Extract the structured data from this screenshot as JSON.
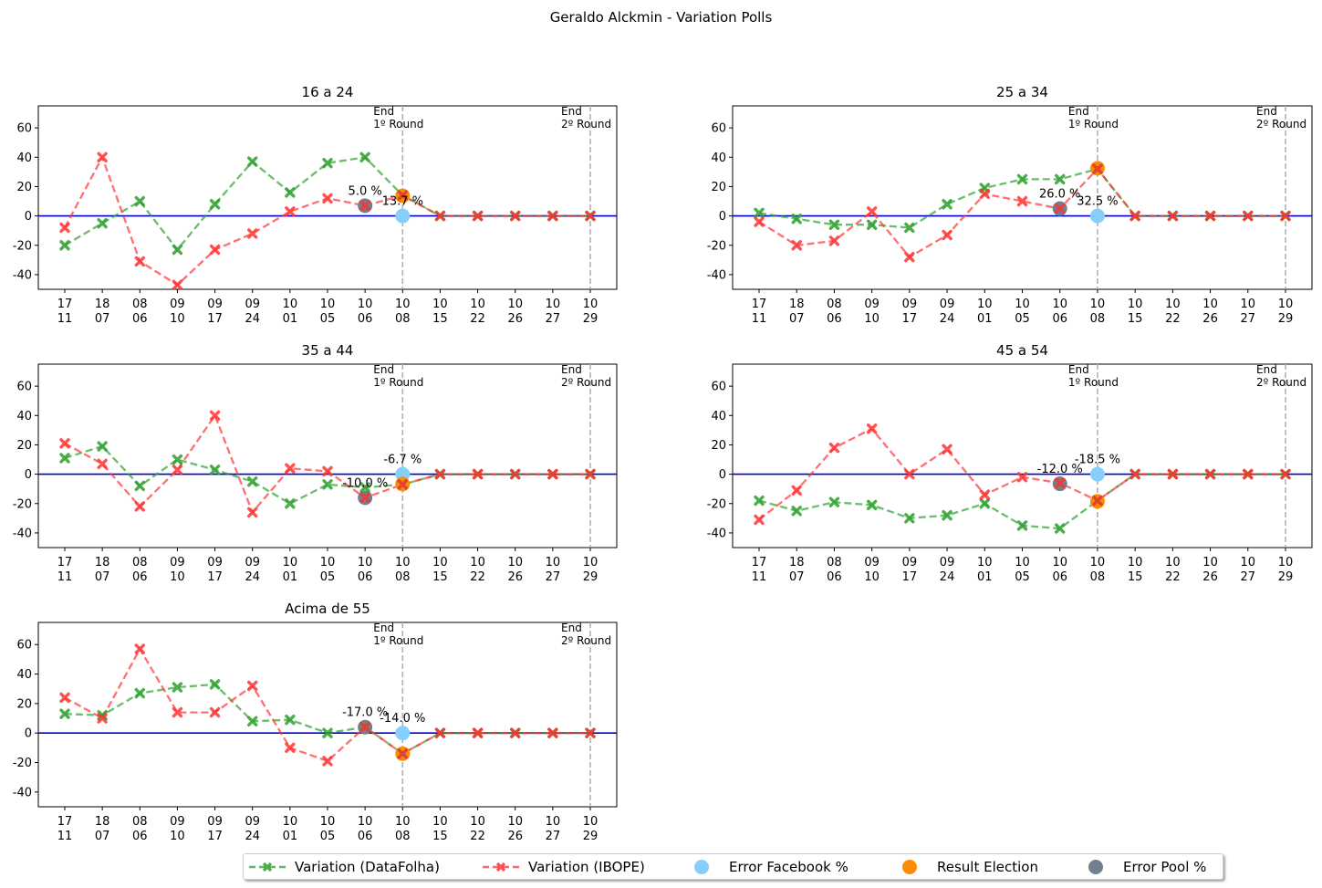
{
  "suptitle": "Geraldo Alckmin - Variation Polls",
  "dates": [
    [
      "17",
      "11"
    ],
    [
      "18",
      "07"
    ],
    [
      "08",
      "06"
    ],
    [
      "09",
      "10"
    ],
    [
      "09",
      "17"
    ],
    [
      "09",
      "24"
    ],
    [
      "10",
      "01"
    ],
    [
      "10",
      "05"
    ],
    [
      "10",
      "06"
    ],
    [
      "10",
      "08"
    ],
    [
      "10",
      "15"
    ],
    [
      "10",
      "22"
    ],
    [
      "10",
      "26"
    ],
    [
      "10",
      "27"
    ],
    [
      "10",
      "29"
    ]
  ],
  "markers": {
    "round1_index": 9,
    "round2_index": 14,
    "round1_label": [
      "End",
      "1º Round"
    ],
    "round2_label": [
      "End",
      "2º Round"
    ]
  },
  "colors": {
    "datafolha": "#2ca02c",
    "ibope": "#ff3333",
    "facebook": "#87cefa",
    "election": "#ff8c00",
    "pool": "#708090",
    "zero_line": "#0000cc",
    "round_line": "#b0b0b0"
  },
  "legend": [
    {
      "key": "datafolha",
      "label": "Variation (DataFolha)"
    },
    {
      "key": "ibope",
      "label": "Variation (IBOPE)"
    },
    {
      "key": "facebook",
      "label": "Error Facebook %"
    },
    {
      "key": "election",
      "label": "Result Election"
    },
    {
      "key": "pool",
      "label": "Error Pool %"
    }
  ],
  "chart_data": [
    {
      "type": "line",
      "title": "16 a 24",
      "ylim": [
        -50,
        75
      ],
      "yticks": [
        -40,
        -20,
        0,
        20,
        40,
        60
      ],
      "series": [
        {
          "name": "Variation (DataFolha)",
          "values": [
            -20,
            -5,
            10,
            -23,
            8,
            37,
            16,
            36,
            40,
            14,
            0,
            0,
            0,
            0,
            0
          ]
        },
        {
          "name": "Variation (IBOPE)",
          "values": [
            -8,
            40,
            -31,
            -47,
            -23,
            -12,
            3,
            12,
            7,
            14,
            0,
            0,
            0,
            0,
            0
          ]
        }
      ],
      "points": {
        "facebook": {
          "x": 9,
          "y": 0
        },
        "election": {
          "x": 9,
          "y": 13.7
        },
        "pool": {
          "x": 8,
          "y": 7
        }
      },
      "annotations": [
        {
          "text": "5.0 %",
          "x": 8,
          "y": 7
        },
        {
          "text": "13.7 %",
          "x": 9,
          "y": 0
        }
      ]
    },
    {
      "type": "line",
      "title": "25 a 34",
      "ylim": [
        -50,
        75
      ],
      "yticks": [
        -40,
        -20,
        0,
        20,
        40,
        60
      ],
      "series": [
        {
          "name": "Variation (DataFolha)",
          "values": [
            2,
            -2,
            -6,
            -6,
            -8,
            8,
            19,
            25,
            25,
            32,
            0,
            0,
            0,
            0,
            0
          ]
        },
        {
          "name": "Variation (IBOPE)",
          "values": [
            -4,
            -20,
            -17,
            3,
            -28,
            -13,
            15,
            10,
            5,
            32,
            0,
            0,
            0,
            0,
            0
          ]
        }
      ],
      "points": {
        "facebook": {
          "x": 9,
          "y": 0
        },
        "election": {
          "x": 9,
          "y": 32.5
        },
        "pool": {
          "x": 8,
          "y": 5
        }
      },
      "annotations": [
        {
          "text": "26.0 %",
          "x": 8,
          "y": 5
        },
        {
          "text": "32.5 %",
          "x": 9,
          "y": 0
        }
      ]
    },
    {
      "type": "line",
      "title": "35 a 44",
      "ylim": [
        -50,
        75
      ],
      "yticks": [
        -40,
        -20,
        0,
        20,
        40,
        60
      ],
      "series": [
        {
          "name": "Variation (DataFolha)",
          "values": [
            11,
            19,
            -8,
            10,
            3,
            -5,
            -20,
            -7,
            -9,
            -7,
            0,
            0,
            0,
            0,
            0
          ]
        },
        {
          "name": "Variation (IBOPE)",
          "values": [
            21,
            7,
            -22,
            3,
            40,
            -26,
            4,
            2,
            -16,
            -7,
            0,
            0,
            0,
            0,
            0
          ]
        }
      ],
      "points": {
        "facebook": {
          "x": 9,
          "y": 0
        },
        "election": {
          "x": 9,
          "y": -6.7
        },
        "pool": {
          "x": 8,
          "y": -16
        }
      },
      "annotations": [
        {
          "text": "-10.0 %",
          "x": 8,
          "y": -16
        },
        {
          "text": "-6.7 %",
          "x": 9,
          "y": 0
        }
      ]
    },
    {
      "type": "line",
      "title": "45 a 54",
      "ylim": [
        -50,
        75
      ],
      "yticks": [
        -40,
        -20,
        0,
        20,
        40,
        60
      ],
      "series": [
        {
          "name": "Variation (DataFolha)",
          "values": [
            -18,
            -25,
            -19,
            -21,
            -30,
            -28,
            -20,
            -35,
            -37,
            -18,
            0,
            0,
            0,
            0,
            0
          ]
        },
        {
          "name": "Variation (IBOPE)",
          "values": [
            -31,
            -11,
            18,
            31,
            0,
            17,
            -14,
            -2,
            -6,
            -18,
            0,
            0,
            0,
            0,
            0
          ]
        }
      ],
      "points": {
        "facebook": {
          "x": 9,
          "y": 0
        },
        "election": {
          "x": 9,
          "y": -18.5
        },
        "pool": {
          "x": 8,
          "y": -6.5
        }
      },
      "annotations": [
        {
          "text": "-12.0 %",
          "x": 8,
          "y": -6.5
        },
        {
          "text": "-18.5 %",
          "x": 9,
          "y": 0
        }
      ]
    },
    {
      "type": "line",
      "title": "Acima de 55",
      "ylim": [
        -50,
        75
      ],
      "yticks": [
        -40,
        -20,
        0,
        20,
        40,
        60
      ],
      "series": [
        {
          "name": "Variation (DataFolha)",
          "values": [
            13,
            12,
            27,
            31,
            33,
            8,
            9,
            0,
            4,
            -14,
            0,
            0,
            0,
            0,
            0
          ]
        },
        {
          "name": "Variation (IBOPE)",
          "values": [
            24,
            10,
            57,
            14,
            14,
            32,
            -10,
            -19,
            4,
            -14,
            0,
            0,
            0,
            0,
            0
          ]
        }
      ],
      "points": {
        "facebook": {
          "x": 9,
          "y": 0
        },
        "election": {
          "x": 9,
          "y": -14
        },
        "pool": {
          "x": 8,
          "y": 4
        }
      },
      "annotations": [
        {
          "text": "-17.0 %",
          "x": 8,
          "y": 4
        },
        {
          "text": "-14.0 %",
          "x": 9,
          "y": 0
        }
      ]
    }
  ]
}
